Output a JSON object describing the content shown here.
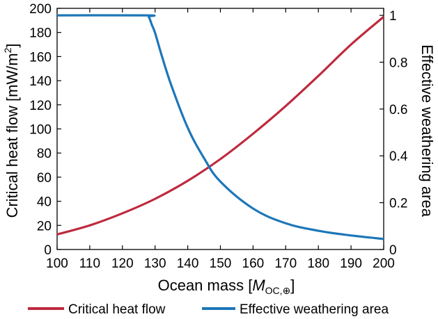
{
  "chart_data": {
    "type": "line",
    "xlabel_main": "Ocean mass [",
    "xlabel_var": "M",
    "xlabel_sub": "OC,⊕",
    "xlabel_end": "]",
    "ylabel_left": "Critical heat flow [mW/m",
    "ylabel_left_sup": "2",
    "ylabel_left_end": "]",
    "ylabel_right": "Effective weathering area",
    "xlim": [
      100,
      200
    ],
    "ylim_left": [
      0,
      200
    ],
    "ylim_right": [
      0,
      1.03
    ],
    "x_ticks": [
      "100",
      "110",
      "120",
      "130",
      "140",
      "150",
      "160",
      "170",
      "180",
      "190",
      "200"
    ],
    "y_left_ticks": [
      "0",
      "20",
      "40",
      "60",
      "80",
      "100",
      "120",
      "140",
      "160",
      "180",
      "200"
    ],
    "y_right_ticks": [
      "0",
      "0.2",
      "0.4",
      "0.6",
      "0.8",
      "1"
    ],
    "grid": false,
    "legend_position": "bottom",
    "series": [
      {
        "name": "Critical heat flow",
        "axis": "left",
        "color": "#be2a3e",
        "x": [
          100,
          110,
          120,
          130,
          140,
          150,
          160,
          170,
          180,
          190,
          200
        ],
        "y": [
          12.5,
          20,
          30,
          42,
          57,
          75,
          96,
          119,
          144,
          170,
          193
        ]
      },
      {
        "name": "Effective weathering area",
        "axis": "right",
        "color": "#1d76b9",
        "x": [
          100,
          127.5,
          128,
          128.5,
          129,
          130,
          132,
          135,
          140,
          145,
          150,
          160,
          170,
          180,
          190,
          200
        ],
        "y": [
          1.0,
          1.0,
          0.995,
          0.98,
          0.96,
          0.925,
          0.83,
          0.7,
          0.52,
          0.39,
          0.29,
          0.175,
          0.112,
          0.08,
          0.06,
          0.045
        ]
      }
    ]
  }
}
